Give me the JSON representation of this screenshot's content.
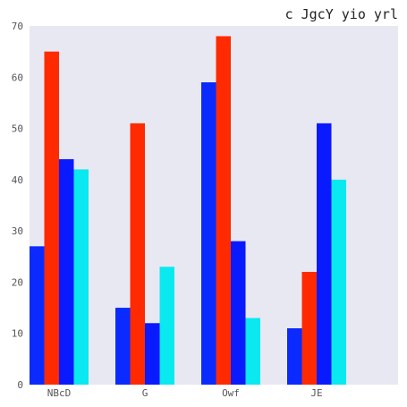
{
  "chart_data": {
    "type": "bar",
    "title": "c JgcY yio yrl",
    "xlabel": "",
    "ylabel": "",
    "categories": [
      "NBcD",
      "G",
      "Owf",
      "JE"
    ],
    "series": [
      {
        "color": "#0a2aff",
        "values": [
          27,
          15,
          59,
          11
        ]
      },
      {
        "color": "#ff2a00",
        "values": [
          65,
          51,
          68,
          22
        ]
      },
      {
        "color": "#0a1aff",
        "values": [
          44,
          12,
          28,
          51
        ]
      },
      {
        "color": "#0ae8f0",
        "values": [
          42,
          23,
          13,
          40
        ]
      }
    ],
    "ylim": [
      0,
      70
    ],
    "yticks": [
      0,
      10,
      20,
      30,
      40,
      50,
      60,
      70
    ],
    "grid": false,
    "background": "#e8e8f2"
  }
}
